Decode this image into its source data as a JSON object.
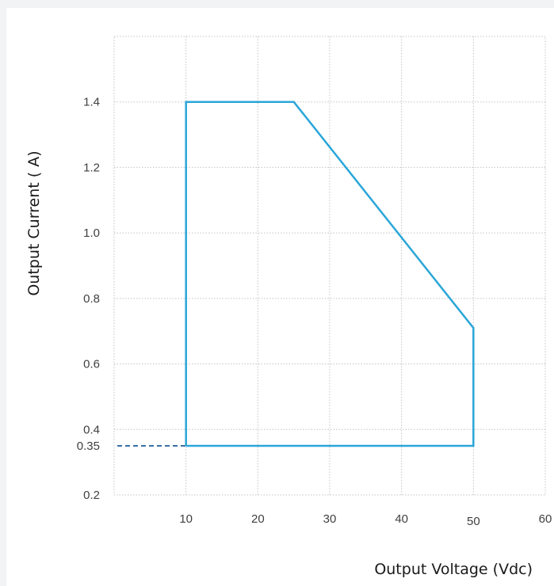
{
  "chart_data": {
    "type": "line",
    "xlabel": "Output Voltage (Vdc)",
    "ylabel": "Output Current ( A)",
    "xlim": [
      0,
      60
    ],
    "ylim": [
      0.2,
      1.6
    ],
    "grid": true,
    "x_ticks": [
      10,
      20,
      30,
      40,
      50,
      60
    ],
    "y_ticks": [
      0.2,
      0.35,
      0.4,
      0.6,
      0.8,
      1.0,
      1.2,
      1.4
    ],
    "y_tick_labels": [
      "0.2",
      "0.35",
      "0.4",
      "0.6",
      "0.8",
      "1.0",
      "1.2",
      "1.4"
    ],
    "series": [
      {
        "color": "#2aa6d8",
        "x": [
          10,
          10,
          25,
          50,
          50,
          10
        ],
        "y": [
          0.35,
          1.4,
          1.4,
          0.71,
          0.35,
          0.35
        ]
      }
    ],
    "reference_line": {
      "style": "dashed",
      "color": "#3b6fa8",
      "x": [
        0,
        10
      ],
      "y": [
        0.35,
        0.35
      ]
    }
  }
}
